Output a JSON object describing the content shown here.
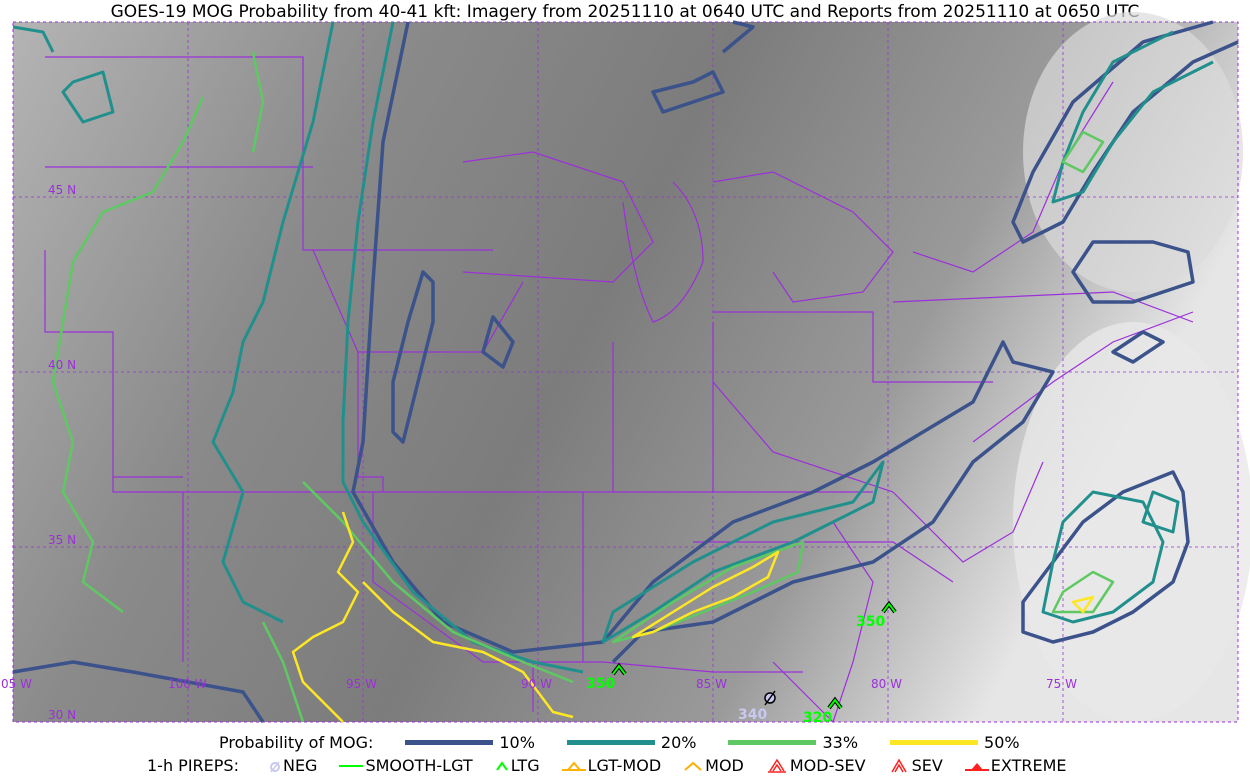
{
  "title": "GOES-19 MOG Probability from 40-41 kft: Imagery from 20251110 at 0640 UTC and Reports from 20251110 at 0650 UTC",
  "map": {
    "lon_labels": [
      "05 W",
      "100 W",
      "95 W",
      "90 W",
      "85 W",
      "80 W",
      "75 W"
    ],
    "lat_labels": [
      "45 N",
      "40 N",
      "35 N",
      "30 N"
    ],
    "border_color": "#9b30d9",
    "pireps": [
      {
        "type": "LTG",
        "altitude": "350",
        "color": "#00ff00"
      },
      {
        "type": "LTG",
        "altitude": "350",
        "color": "#00ff00"
      },
      {
        "type": "NEG",
        "altitude": "340",
        "color": "#c8c8f0"
      },
      {
        "type": "LTG",
        "altitude": "320",
        "color": "#00ff00"
      }
    ]
  },
  "legend": {
    "probability_label": "Probability of MOG:",
    "levels": [
      {
        "label": "10%",
        "color": "#3b528b"
      },
      {
        "label": "20%",
        "color": "#21908d"
      },
      {
        "label": "33%",
        "color": "#5ec962"
      },
      {
        "label": "50%",
        "color": "#fde725"
      }
    ],
    "pireps_label": "1-h PIREPS:",
    "pirep_types": [
      {
        "label": "NEG",
        "color": "#c8c8f0",
        "icon": "neg-circle-slash-icon"
      },
      {
        "label": "SMOOTH-LGT",
        "color": "#00ff00",
        "icon": "line-icon"
      },
      {
        "label": "LTG",
        "color": "#00ff00",
        "icon": "caret-icon"
      },
      {
        "label": "LGT-MOD",
        "color": "#ffb000",
        "icon": "caret-bar-icon"
      },
      {
        "label": "MOD",
        "color": "#ffb000",
        "icon": "caret-icon"
      },
      {
        "label": "MOD-SEV",
        "color": "#ff2020",
        "icon": "double-caret-bar-icon"
      },
      {
        "label": "SEV",
        "color": "#ff2020",
        "icon": "double-caret-icon"
      },
      {
        "label": "EXTREME",
        "color": "#ff2020",
        "icon": "filled-triangle-icon"
      }
    ]
  }
}
